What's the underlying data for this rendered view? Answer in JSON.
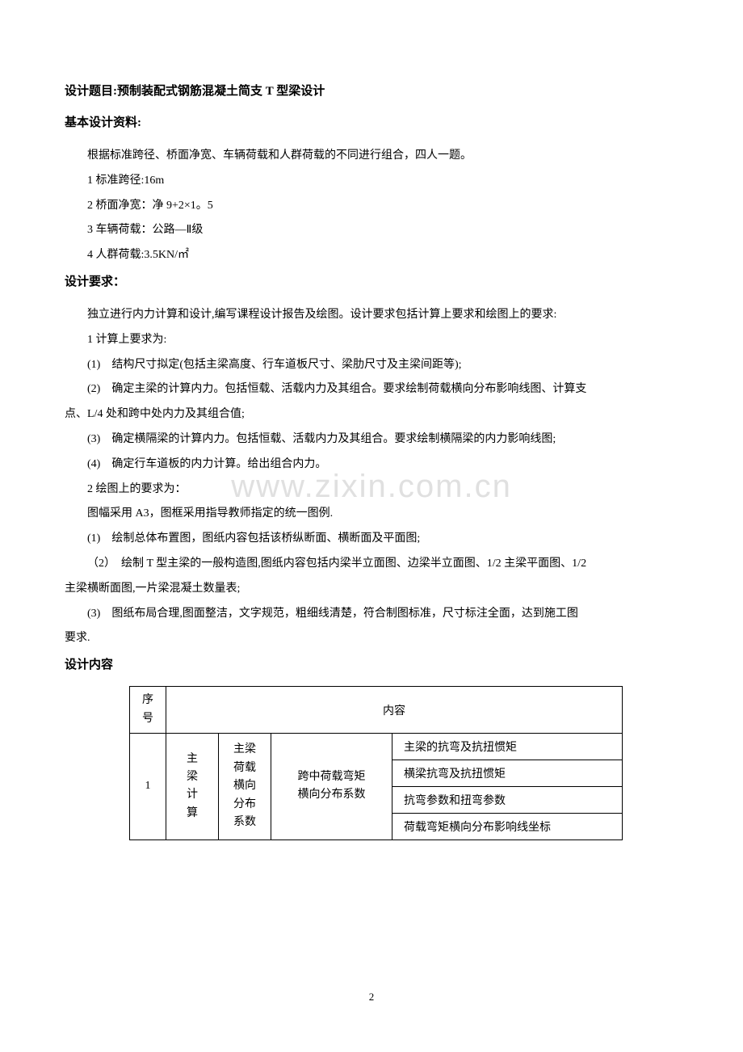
{
  "watermark": "www.zixin.com.cn",
  "title": "设计题目:预制装配式钢筋混凝土简支 T 型梁设计",
  "section1": {
    "heading": "基本设计资料:",
    "intro": "根据标准跨径、桥面净宽、车辆荷载和人群荷载的不同进行组合，四人一题。",
    "items": [
      "1 标准跨径:16m",
      "2 桥面净宽：净 9+2×1。5",
      "3 车辆荷载：公路—Ⅱ级",
      "4 人群荷载:3.5KN/㎡"
    ]
  },
  "section2": {
    "heading": "设计要求：",
    "intro": "独立进行内力计算和设计,编写课程设计报告及绘图。设计要求包括计算上要求和绘图上的要求:",
    "calc_heading": "1 计算上要求为:",
    "calc_items": [
      "(1)　结构尺寸拟定(包括主梁高度、行车道板尺寸、梁肋尺寸及主梁间距等);",
      "(2)　确定主梁的计算内力。包括恒载、活载内力及其组合。要求绘制荷载横向分布影响线图、计算支"
    ],
    "calc_cont": "点、L/4 处和跨中处内力及其组合值;",
    "calc_items2": [
      "(3)　确定横隔梁的计算内力。包括恒载、活载内力及其组合。要求绘制横隔梁的内力影响线图;",
      "(4)　确定行车道板的内力计算。给出组合内力。"
    ],
    "draw_heading": "2 绘图上的要求为：",
    "draw_intro": "图幅采用 A3，图框采用指导教师指定的统一图例.",
    "draw_items": [
      "(1)　绘制总体布置图，图纸内容包括该桥纵断面、横断面及平面图;",
      "（2）　绘制 T 型主梁的一般构造图,图纸内容包括内梁半立面图、边梁半立面图、1/2 主梁平面图、1/2"
    ],
    "draw_cont": "主梁横断面图,一片梁混凝土数量表;",
    "draw_items2": [
      "(3)　图纸布局合理,图面整洁，文字规范，粗细线清楚，符合制图标准，尺寸标注全面，达到施工图"
    ],
    "draw_cont2": "要求."
  },
  "section3": {
    "heading": "设计内容"
  },
  "table": {
    "header_seq": "序号",
    "header_content": "内容",
    "row1_seq": "1",
    "row1_col1": "主梁计算",
    "row1_col2": "主梁荷载横向分布系数",
    "row1_col3": "跨中荷载弯矩横向分布系数",
    "row1_items": [
      "主梁的抗弯及抗扭惯矩",
      "横梁抗弯及抗扭惯矩",
      "抗弯参数和扭弯参数",
      "荷载弯矩横向分布影响线坐标"
    ]
  },
  "page_number": "2",
  "colors": {
    "background": "#ffffff",
    "text": "#000000",
    "watermark": "#e0e0e0",
    "table_border": "#000000"
  }
}
